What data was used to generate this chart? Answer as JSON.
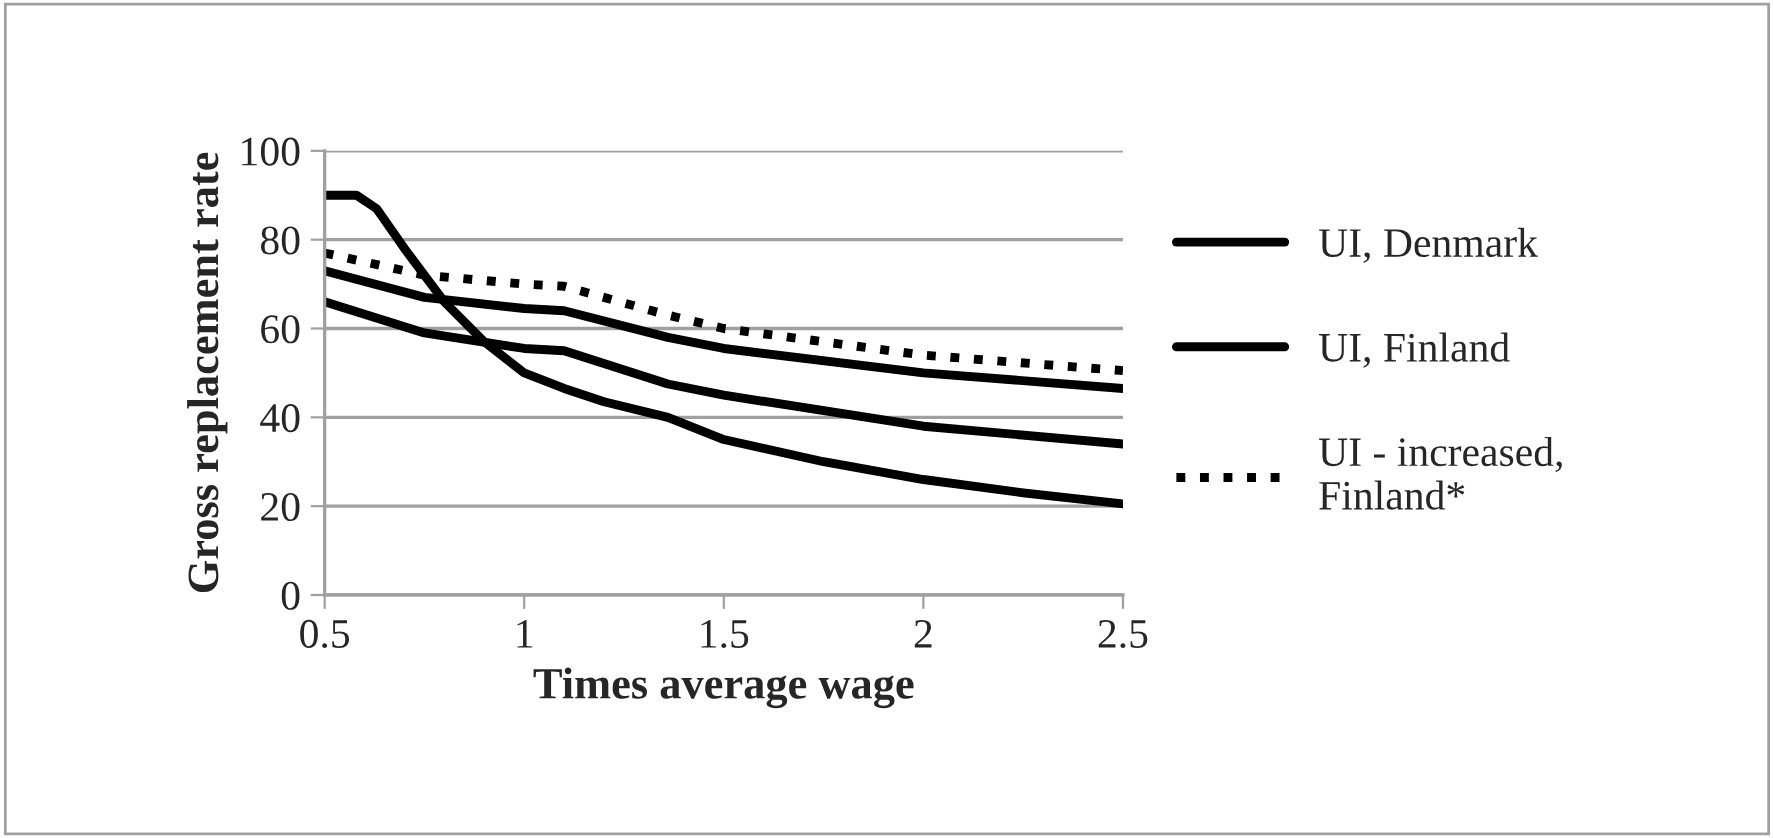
{
  "chart_data": {
    "type": "line",
    "xlabel": "Times average wage",
    "ylabel": "Gross replacement rate",
    "xlim": [
      0.5,
      2.5
    ],
    "xticks": [
      {
        "value": 0.5,
        "label": "0.5"
      },
      1,
      {
        "value": 1.5,
        "label": "1.5"
      },
      2,
      {
        "value": 2.5,
        "label": "2.5"
      }
    ],
    "ylim": [
      0,
      100
    ],
    "yticks": [
      0,
      20,
      40,
      60,
      80,
      100
    ],
    "grid": "y",
    "legend": "right",
    "marker": "none",
    "series": [
      {
        "name": "UI, Denmark",
        "color": "#000000",
        "line_style": "solid",
        "x": [
          0.5,
          0.58,
          0.63,
          0.7,
          0.8,
          0.9,
          1.0,
          1.1,
          1.2,
          1.36,
          1.5,
          1.75,
          2.0,
          2.25,
          2.5
        ],
        "values": [
          90,
          90,
          87,
          78,
          66,
          57,
          50,
          46.5,
          43.5,
          40,
          35,
          30,
          26,
          23,
          20.5
        ]
      },
      {
        "name": "UI, Finland",
        "color": "#000000",
        "line_style": "solid",
        "x": [
          0.5,
          0.75,
          1.0,
          1.1,
          1.36,
          1.5,
          2.0,
          2.5
        ],
        "values": [
          73,
          67,
          64.5,
          64,
          58,
          55.5,
          50,
          46.5
        ]
      },
      {
        "name": "UI - increased, Finland*",
        "color": "#000000",
        "line_style": "dotted",
        "x": [
          0.5,
          0.75,
          1.0,
          1.1,
          1.36,
          1.5,
          2.0,
          2.5
        ],
        "values": [
          77,
          72,
          70,
          69.5,
          63,
          60,
          54,
          50.5
        ]
      },
      {
        "color": "#000000",
        "line_style": "solid",
        "x": [
          0.5,
          0.75,
          1.0,
          1.1,
          1.36,
          1.5,
          2.0,
          2.5
        ],
        "values": [
          66,
          59,
          55.5,
          55,
          47.5,
          45,
          38,
          34
        ]
      }
    ]
  }
}
